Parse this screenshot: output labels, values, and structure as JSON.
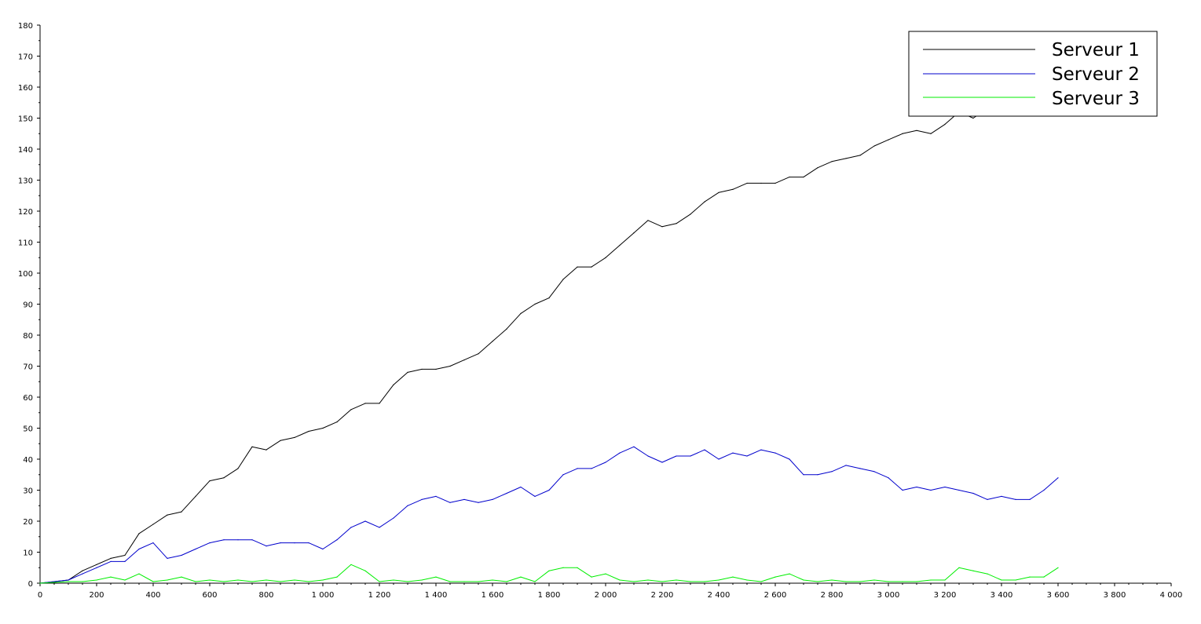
{
  "chart_data": {
    "type": "line",
    "title": "",
    "xlabel": "",
    "ylabel": "",
    "xlim": [
      0,
      4000
    ],
    "ylim": [
      0,
      180
    ],
    "x_ticks": [
      0,
      200,
      400,
      600,
      800,
      1000,
      1200,
      1400,
      1600,
      1800,
      2000,
      2200,
      2400,
      2600,
      2800,
      3000,
      3200,
      3400,
      3600,
      3800,
      4000
    ],
    "x_tick_labels": [
      "0",
      "200",
      "400",
      "600",
      "800",
      "1 000",
      "1 200",
      "1 400",
      "1 600",
      "1 800",
      "2 000",
      "2 200",
      "2 400",
      "2 600",
      "2 800",
      "3 000",
      "3 200",
      "3 400",
      "3 600",
      "3 800",
      "4 000"
    ],
    "y_ticks": [
      0,
      10,
      20,
      30,
      40,
      50,
      60,
      70,
      80,
      90,
      100,
      110,
      120,
      130,
      140,
      150,
      160,
      170,
      180
    ],
    "y_tick_labels": [
      "0",
      "10",
      "20",
      "30",
      "40",
      "50",
      "60",
      "70",
      "80",
      "90",
      "100",
      "110",
      "120",
      "130",
      "140",
      "150",
      "160",
      "170",
      "180"
    ],
    "grid": false,
    "legend_position": "top-right",
    "x": [
      0,
      100,
      150,
      200,
      250,
      300,
      350,
      400,
      450,
      500,
      550,
      600,
      650,
      700,
      750,
      800,
      850,
      900,
      950,
      1000,
      1050,
      1100,
      1150,
      1200,
      1250,
      1300,
      1350,
      1400,
      1450,
      1500,
      1550,
      1600,
      1650,
      1700,
      1750,
      1800,
      1850,
      1900,
      1950,
      2000,
      2050,
      2100,
      2150,
      2200,
      2250,
      2300,
      2350,
      2400,
      2450,
      2500,
      2550,
      2600,
      2650,
      2700,
      2750,
      2800,
      2850,
      2900,
      2950,
      3000,
      3050,
      3100,
      3150,
      3200,
      3250,
      3300,
      3350,
      3400,
      3450,
      3500,
      3550,
      3600
    ],
    "series": [
      {
        "name": "Serveur 1",
        "color": "#000000",
        "values": [
          0,
          1,
          4,
          6,
          8,
          9,
          16,
          19,
          22,
          23,
          28,
          33,
          34,
          37,
          44,
          43,
          46,
          47,
          49,
          50,
          52,
          56,
          58,
          58,
          64,
          68,
          69,
          69,
          70,
          72,
          74,
          78,
          82,
          87,
          90,
          92,
          98,
          102,
          102,
          105,
          109,
          113,
          117,
          115,
          116,
          119,
          123,
          126,
          127,
          129,
          129,
          129,
          131,
          131,
          134,
          136,
          137,
          138,
          141,
          143,
          145,
          146,
          145,
          148,
          152,
          150,
          153,
          152,
          155,
          156,
          157,
          158
        ]
      },
      {
        "name": "Serveur 2",
        "color": "#0000cc",
        "values": [
          0,
          1,
          3,
          5,
          7,
          7,
          11,
          13,
          8,
          9,
          11,
          13,
          14,
          14,
          14,
          12,
          13,
          13,
          13,
          11,
          14,
          18,
          20,
          18,
          21,
          25,
          27,
          28,
          26,
          27,
          26,
          27,
          29,
          31,
          28,
          30,
          35,
          37,
          37,
          39,
          42,
          44,
          41,
          39,
          41,
          41,
          43,
          40,
          42,
          41,
          43,
          42,
          40,
          35,
          35,
          36,
          38,
          37,
          36,
          34,
          30,
          31,
          30,
          31,
          30,
          29,
          27,
          28,
          27,
          27,
          30,
          34
        ]
      },
      {
        "name": "Serveur 3",
        "color": "#00ee00",
        "values": [
          0,
          0.5,
          0.5,
          1,
          2,
          1,
          3,
          0.5,
          1,
          2,
          0.5,
          1,
          0.5,
          1,
          0.5,
          1,
          0.5,
          1,
          0.5,
          1,
          2,
          6,
          4,
          0.5,
          1,
          0.5,
          1,
          2,
          0.5,
          0.5,
          0.5,
          1,
          0.5,
          2,
          0.5,
          4,
          5,
          5,
          2,
          3,
          1,
          0.5,
          1,
          0.5,
          1,
          0.5,
          0.5,
          1,
          2,
          1,
          0.5,
          2,
          3,
          1,
          0.5,
          1,
          0.5,
          0.5,
          1,
          0.5,
          0.5,
          0.5,
          1,
          1,
          5,
          4,
          3,
          1,
          1,
          2,
          2,
          5
        ]
      }
    ]
  }
}
